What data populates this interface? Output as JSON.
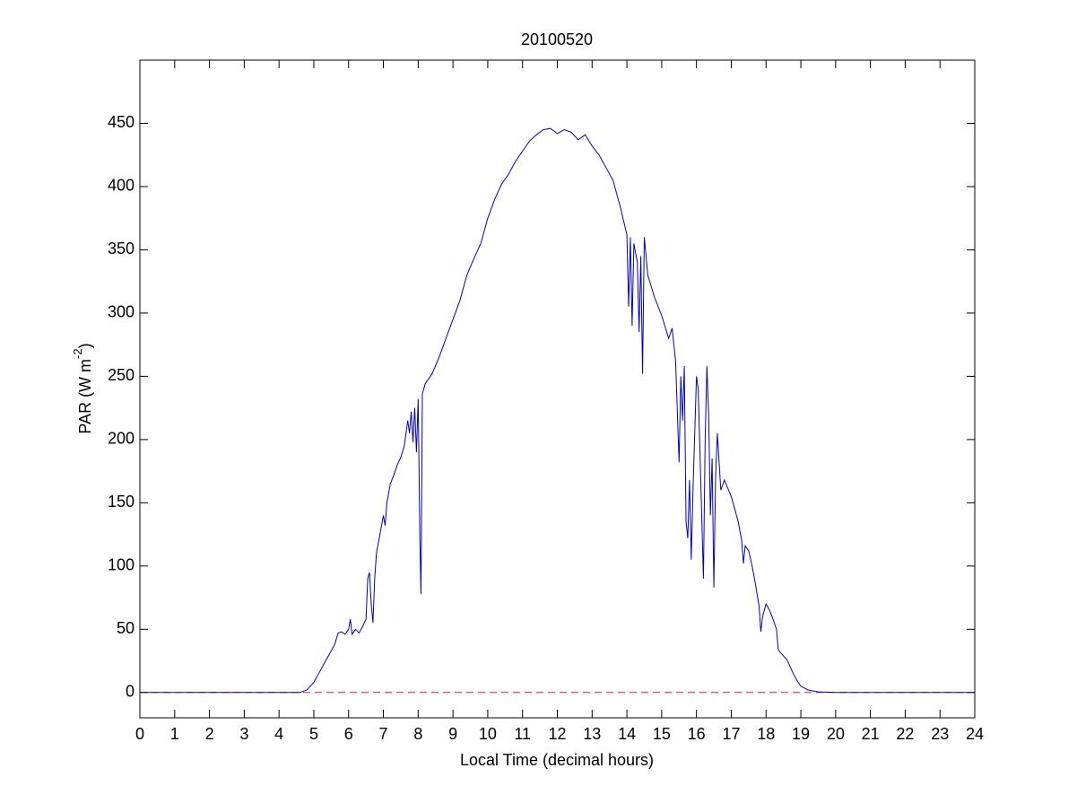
{
  "chart_data": {
    "type": "line",
    "title": "20100520",
    "x_label": "Local Time (decimal hours)",
    "y_label": [
      "PAR (W m",
      "-2",
      ")"
    ],
    "xlim": [
      0,
      24
    ],
    "xticks": [
      0,
      1,
      2,
      3,
      4,
      5,
      6,
      7,
      8,
      9,
      10,
      11,
      12,
      13,
      14,
      15,
      16,
      17,
      18,
      19,
      20,
      21,
      22,
      23,
      24
    ],
    "ylim": [
      -20,
      500
    ],
    "yticks": [
      0,
      50,
      100,
      150,
      200,
      250,
      300,
      350,
      400,
      450
    ],
    "grid": false,
    "hline": {
      "value": 0,
      "color": "#d62728",
      "dashed": true
    },
    "series": [
      {
        "color": "#0000c8",
        "x": [
          0,
          4.6,
          4.8,
          5.0,
          5.2,
          5.4,
          5.6,
          5.7,
          5.8,
          5.9,
          6.0,
          6.05,
          6.1,
          6.2,
          6.3,
          6.4,
          6.5,
          6.55,
          6.6,
          6.65,
          6.7,
          6.75,
          6.8,
          6.9,
          7.0,
          7.05,
          7.1,
          7.2,
          7.3,
          7.4,
          7.5,
          7.6,
          7.7,
          7.75,
          7.8,
          7.85,
          7.9,
          7.95,
          8.0,
          8.05,
          8.08,
          8.12,
          8.2,
          8.4,
          8.6,
          8.8,
          9.0,
          9.2,
          9.4,
          9.6,
          9.8,
          10.0,
          10.2,
          10.4,
          10.6,
          10.8,
          11.0,
          11.2,
          11.4,
          11.6,
          11.8,
          12.0,
          12.2,
          12.4,
          12.6,
          12.8,
          13.0,
          13.2,
          13.4,
          13.6,
          13.8,
          14.0,
          14.05,
          14.1,
          14.15,
          14.2,
          14.3,
          14.35,
          14.4,
          14.45,
          14.5,
          14.6,
          14.8,
          15.0,
          15.2,
          15.3,
          15.4,
          15.5,
          15.55,
          15.6,
          15.65,
          15.7,
          15.75,
          15.8,
          15.85,
          15.9,
          16.0,
          16.05,
          16.1,
          16.2,
          16.25,
          16.3,
          16.35,
          16.4,
          16.45,
          16.5,
          16.55,
          16.6,
          16.7,
          16.8,
          17.0,
          17.2,
          17.3,
          17.35,
          17.4,
          17.5,
          17.6,
          17.7,
          17.8,
          17.85,
          17.9,
          18.0,
          18.1,
          18.2,
          18.3,
          18.35,
          18.4,
          18.5,
          18.6,
          18.7,
          18.8,
          18.9,
          19.0,
          19.2,
          19.5,
          20,
          24
        ],
        "values": [
          0,
          0,
          2,
          8,
          18,
          28,
          38,
          47,
          48,
          46,
          50,
          58,
          46,
          50,
          47,
          52,
          58,
          90,
          95,
          70,
          55,
          90,
          110,
          125,
          140,
          132,
          150,
          165,
          172,
          180,
          186,
          195,
          215,
          205,
          222,
          198,
          225,
          190,
          232,
          120,
          78,
          236,
          244,
          252,
          265,
          280,
          295,
          310,
          330,
          343,
          355,
          375,
          390,
          402,
          410,
          420,
          428,
          436,
          441,
          445,
          446,
          442,
          445,
          443,
          437,
          441,
          432,
          425,
          415,
          405,
          385,
          362,
          305,
          360,
          290,
          355,
          340,
          285,
          345,
          252,
          360,
          330,
          312,
          298,
          280,
          288,
          262,
          182,
          250,
          215,
          258,
          135,
          122,
          168,
          105,
          160,
          250,
          240,
          190,
          90,
          200,
          258,
          220,
          140,
          185,
          83,
          170,
          205,
          160,
          168,
          155,
          135,
          120,
          102,
          116,
          112,
          100,
          85,
          68,
          48,
          60,
          70,
          65,
          58,
          50,
          34,
          32,
          29,
          26,
          20,
          14,
          9,
          5,
          2,
          0.5,
          0,
          0
        ]
      }
    ]
  }
}
